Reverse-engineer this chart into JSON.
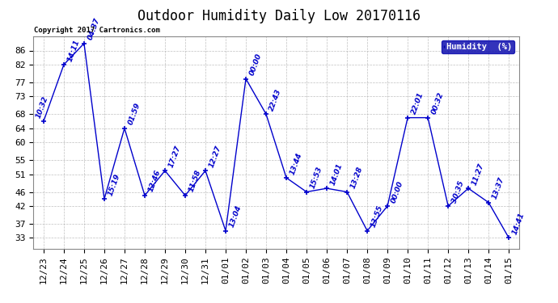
{
  "title": "Outdoor Humidity Daily Low 20170116",
  "copyright": "Copyright 2017 Cartronics.com",
  "legend_label": "Humidity  (%)",
  "line_color": "#0000cc",
  "background_color": "#ffffff",
  "grid_color": "#b0b0b0",
  "x_labels": [
    "12/23",
    "12/24",
    "12/25",
    "12/26",
    "12/27",
    "12/28",
    "12/29",
    "12/30",
    "12/31",
    "01/01",
    "01/02",
    "01/03",
    "01/04",
    "01/05",
    "01/06",
    "01/07",
    "01/08",
    "01/09",
    "01/10",
    "01/11",
    "01/12",
    "01/13",
    "01/14",
    "01/15"
  ],
  "x_values": [
    0,
    1,
    2,
    3,
    4,
    5,
    6,
    7,
    8,
    9,
    10,
    11,
    12,
    13,
    14,
    15,
    16,
    17,
    18,
    19,
    20,
    21,
    22,
    23
  ],
  "y_values": [
    66,
    82,
    88,
    44,
    64,
    45,
    52,
    45,
    52,
    35,
    78,
    68,
    50,
    46,
    47,
    46,
    35,
    42,
    67,
    67,
    42,
    47,
    43,
    33
  ],
  "point_labels": [
    "10:32",
    "14:11",
    "04:37",
    "15:19",
    "01:59",
    "12:46",
    "17:27",
    "11:58",
    "12:27",
    "13:04",
    "00:00",
    "22:43",
    "13:44",
    "15:53",
    "14:01",
    "13:28",
    "13:55",
    "00:00",
    "22:01",
    "00:32",
    "30:35",
    "11:27",
    "13:37",
    "14:41"
  ],
  "yticks": [
    33,
    37,
    42,
    46,
    51,
    55,
    60,
    64,
    68,
    73,
    77,
    82,
    86
  ],
  "ylim": [
    30,
    90
  ],
  "xlim": [
    -0.5,
    23.5
  ],
  "title_fontsize": 12,
  "label_fontsize": 6.5,
  "tick_fontsize": 8
}
